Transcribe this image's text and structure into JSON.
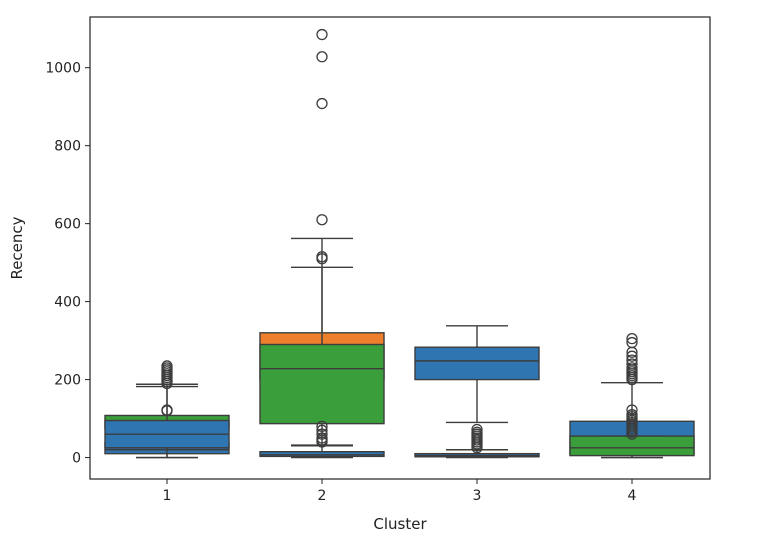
{
  "chart_data": {
    "type": "boxplot",
    "xlabel": "Cluster",
    "ylabel": "Recency",
    "categories": [
      "1",
      "2",
      "3",
      "4"
    ],
    "ylim": [
      -55,
      1130
    ],
    "yticks": [
      0,
      200,
      400,
      600,
      800,
      1000
    ],
    "grid": false,
    "colors": {
      "blue": "#2f75b1",
      "orange": "#ee7f2c",
      "green": "#3a9e3a",
      "line": "#3d3d3d"
    },
    "boxes": [
      {
        "category": "1",
        "color": "blue",
        "whislo": 0,
        "q1": 10,
        "median": 20,
        "q3": 37,
        "whishi": 78,
        "fliers": []
      },
      {
        "category": "1",
        "color": "green",
        "whislo": 65,
        "q1": 75,
        "median": 78,
        "q3": 108,
        "whishi": 182,
        "fliers": [
          190,
          195,
          200,
          205,
          210,
          215,
          220,
          225,
          230,
          235
        ]
      },
      {
        "category": "1",
        "color": "blue",
        "whislo": 0,
        "q1": 25,
        "median": 60,
        "q3": 95,
        "whishi": 188,
        "fliers": [
          120,
          122
        ]
      },
      {
        "category": "2",
        "color": "blue",
        "whislo": 0,
        "q1": 3,
        "median": 7,
        "q3": 15,
        "whishi": 32,
        "fliers": [
          40,
          45,
          50
        ]
      },
      {
        "category": "2",
        "color": "orange",
        "whislo": 100,
        "q1": 200,
        "median": 250,
        "q3": 320,
        "whishi": 562,
        "fliers": [
          610,
          908,
          1028,
          1085
        ]
      },
      {
        "category": "2",
        "color": "green",
        "whislo": 30,
        "q1": 87,
        "median": 228,
        "q3": 290,
        "whishi": 488,
        "fliers": [
          510,
          515,
          60,
          70,
          80
        ]
      },
      {
        "category": "3",
        "color": "blue",
        "whislo": 90,
        "q1": 200,
        "median": 248,
        "q3": 283,
        "whishi": 338,
        "fliers": []
      },
      {
        "category": "3",
        "color": "blue",
        "whislo": 0,
        "q1": 2,
        "median": 5,
        "q3": 10,
        "whishi": 20,
        "fliers": [
          25,
          30,
          35,
          40,
          45,
          50,
          55,
          60,
          65,
          72
        ]
      },
      {
        "category": "4",
        "color": "blue",
        "whislo": 0,
        "q1": 8,
        "median": 50,
        "q3": 93,
        "whishi": 192,
        "fliers": [
          200,
          205,
          210,
          215,
          220,
          225,
          230,
          240,
          250,
          260,
          270,
          295,
          305
        ]
      },
      {
        "category": "4",
        "color": "green",
        "whislo": 0,
        "q1": 5,
        "median": 25,
        "q3": 55,
        "whishi": 55,
        "fliers": [
          60,
          65,
          70,
          75,
          80,
          85,
          90,
          95,
          100,
          105,
          110,
          122
        ]
      }
    ]
  }
}
